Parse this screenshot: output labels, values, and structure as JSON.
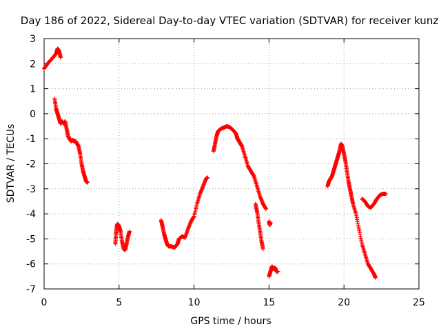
{
  "chart_data": {
    "type": "scatter",
    "title": "Day 186 of 2022, Sidereal Day-to-day VTEC variation (SDTVAR) for receiver kunz",
    "xlabel": "GPS time / hours",
    "ylabel": "SDTVAR / TECUs",
    "xlim": [
      0,
      25
    ],
    "ylim": [
      -7,
      3
    ],
    "xticks": [
      0,
      5,
      10,
      15,
      20,
      25
    ],
    "yticks": [
      -7,
      -6,
      -5,
      -4,
      -3,
      -2,
      -1,
      0,
      1,
      2,
      3
    ],
    "grid": true,
    "marker": "+",
    "color": "#ff0000",
    "segments": [
      {
        "x": [
          0.0,
          0.3,
          0.6,
          0.8,
          0.9,
          1.0,
          1.1
        ],
        "y": [
          1.8,
          2.05,
          2.25,
          2.4,
          2.6,
          2.5,
          2.25
        ]
      },
      {
        "x": [
          0.7,
          0.8,
          0.9,
          1.0,
          1.1,
          1.2,
          1.3,
          1.4,
          1.5,
          1.6,
          1.7,
          1.8,
          1.9,
          2.0,
          2.1,
          2.2,
          2.3,
          2.4,
          2.5,
          2.6,
          2.7,
          2.8,
          2.9
        ],
        "y": [
          0.6,
          0.2,
          0.0,
          -0.2,
          -0.4,
          -0.3,
          -0.4,
          -0.3,
          -0.6,
          -0.9,
          -1.0,
          -1.1,
          -1.05,
          -1.1,
          -1.1,
          -1.2,
          -1.3,
          -1.6,
          -2.0,
          -2.3,
          -2.5,
          -2.7,
          -2.75
        ]
      },
      {
        "x": [
          4.75,
          4.8,
          4.85,
          4.9,
          5.0,
          5.1,
          5.2,
          5.3,
          5.4,
          5.5,
          5.6,
          5.7
        ],
        "y": [
          -5.2,
          -4.8,
          -4.5,
          -4.4,
          -4.5,
          -4.7,
          -5.1,
          -5.4,
          -5.45,
          -5.2,
          -4.9,
          -4.7
        ]
      },
      {
        "x": [
          7.8,
          7.9,
          8.0,
          8.1,
          8.2,
          8.3,
          8.5,
          8.7,
          8.9,
          9.0,
          9.2,
          9.4,
          9.6,
          9.8,
          10.0,
          10.2,
          10.4,
          10.6,
          10.8,
          10.9
        ],
        "y": [
          -4.25,
          -4.5,
          -4.8,
          -5.0,
          -5.2,
          -5.3,
          -5.3,
          -5.35,
          -5.2,
          -5.0,
          -4.9,
          -4.95,
          -4.6,
          -4.3,
          -4.1,
          -3.6,
          -3.2,
          -2.9,
          -2.6,
          -2.55
        ]
      },
      {
        "x": [
          11.3,
          11.4,
          11.5,
          11.6,
          11.8,
          12.0,
          12.2,
          12.4,
          12.6,
          12.8,
          12.9,
          13.0,
          13.1,
          13.2,
          13.4,
          13.6,
          13.8,
          14.0,
          14.2,
          14.4,
          14.6,
          14.8
        ],
        "y": [
          -1.5,
          -1.2,
          -0.9,
          -0.7,
          -0.6,
          -0.55,
          -0.5,
          -0.55,
          -0.65,
          -0.8,
          -1.0,
          -1.1,
          -1.2,
          -1.3,
          -1.7,
          -2.1,
          -2.3,
          -2.5,
          -2.9,
          -3.3,
          -3.6,
          -3.8
        ]
      },
      {
        "x": [
          14.1,
          14.2,
          14.3,
          14.4,
          14.5,
          14.6
        ],
        "y": [
          -3.6,
          -3.9,
          -4.3,
          -4.7,
          -5.1,
          -5.4
        ]
      },
      {
        "x": [
          15.0,
          15.05,
          15.1
        ],
        "y": [
          -4.3,
          -4.45,
          -4.35
        ]
      },
      {
        "x": [
          15.0,
          15.1,
          15.2,
          15.3,
          15.4,
          15.5,
          15.6
        ],
        "y": [
          -6.5,
          -6.3,
          -6.1,
          -6.2,
          -6.15,
          -6.3,
          -6.3
        ]
      },
      {
        "x": [
          18.9,
          19.0,
          19.1,
          19.2,
          19.3,
          19.4,
          19.5,
          19.6,
          19.7,
          19.8,
          19.9,
          20.0,
          20.1,
          20.2,
          20.3,
          20.4,
          20.5,
          20.6,
          20.8,
          21.0,
          21.2,
          21.4,
          21.6,
          21.8,
          22.0,
          22.1
        ],
        "y": [
          -2.9,
          -2.7,
          -2.6,
          -2.5,
          -2.3,
          -2.1,
          -1.9,
          -1.7,
          -1.5,
          -1.2,
          -1.3,
          -1.6,
          -1.9,
          -2.3,
          -2.7,
          -3.0,
          -3.3,
          -3.6,
          -4.0,
          -4.6,
          -5.2,
          -5.6,
          -6.0,
          -6.2,
          -6.4,
          -6.55
        ]
      },
      {
        "x": [
          21.2,
          21.4,
          21.6,
          21.8,
          22.0,
          22.2,
          22.4,
          22.6,
          22.8
        ],
        "y": [
          -3.4,
          -3.5,
          -3.7,
          -3.75,
          -3.6,
          -3.4,
          -3.25,
          -3.2,
          -3.2
        ]
      }
    ]
  }
}
